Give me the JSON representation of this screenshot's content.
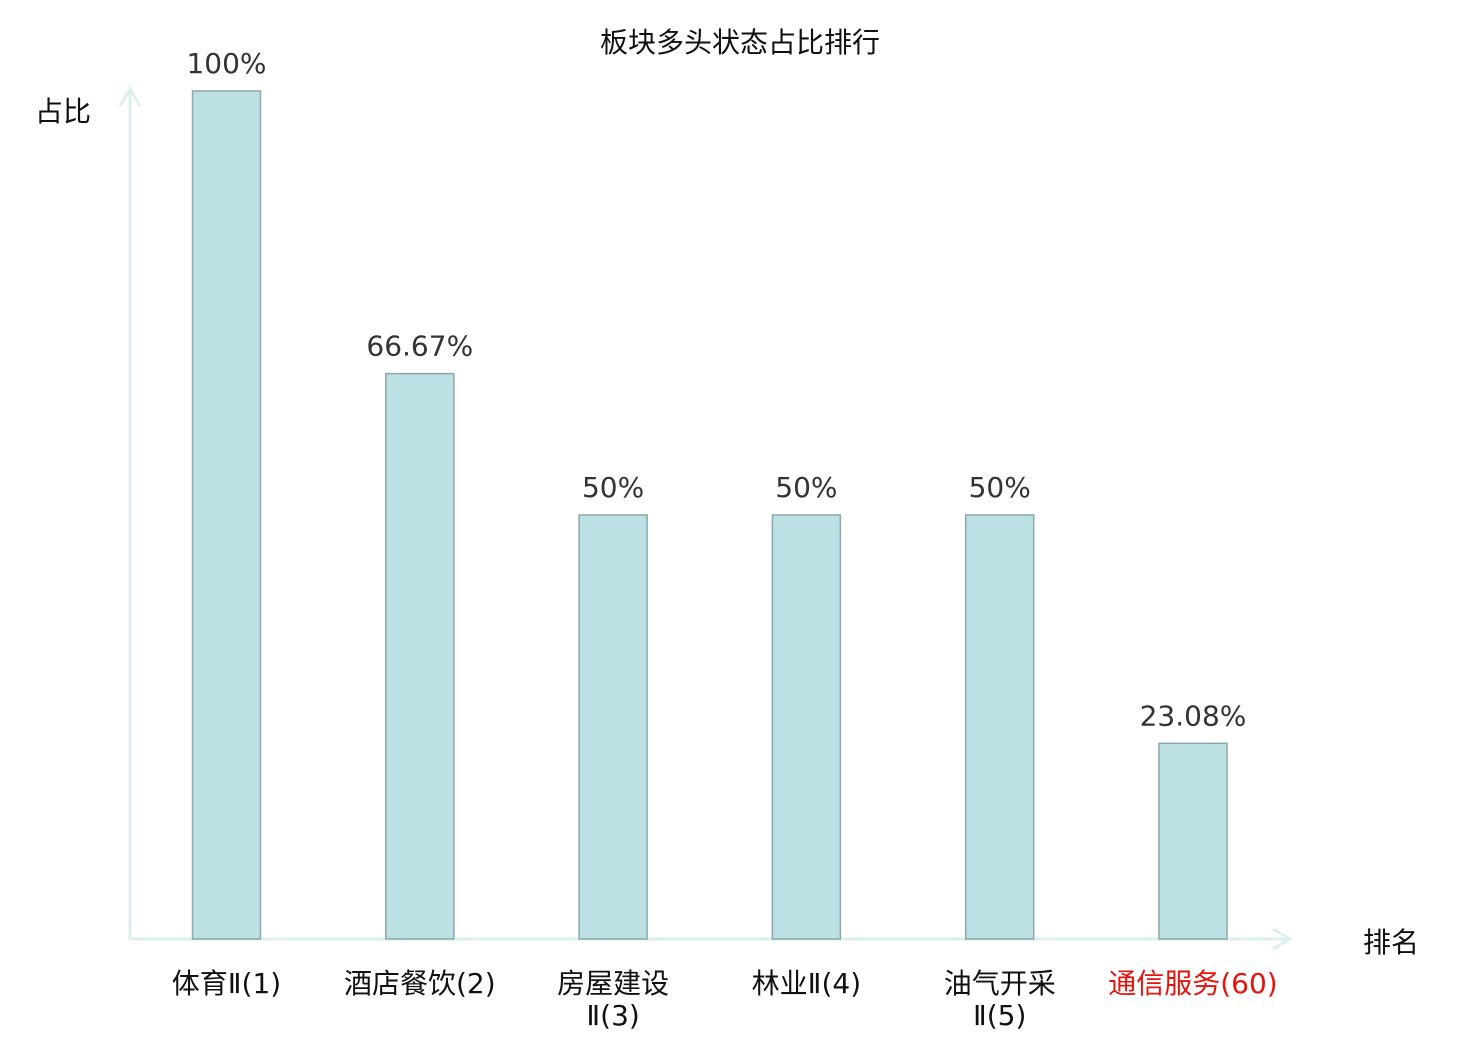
{
  "chart_data": {
    "type": "bar",
    "title": "板块多头状态占比排行",
    "xlabel": "排名",
    "ylabel": "占比",
    "ylim": [
      0,
      100
    ],
    "categories": [
      "体育Ⅱ(1)",
      "酒店餐饮(2)",
      "房屋建设Ⅱ(3)",
      "林业Ⅱ(4)",
      "油气开采Ⅱ(5)",
      "通信服务(60)"
    ],
    "category_lines": [
      [
        "体育Ⅱ(1)"
      ],
      [
        "酒店餐饮(2)"
      ],
      [
        "房屋建设",
        "Ⅱ(3)"
      ],
      [
        "林业Ⅱ(4)"
      ],
      [
        "油气开采",
        "Ⅱ(5)"
      ],
      [
        "通信服务(60)"
      ]
    ],
    "values": [
      100,
      66.67,
      50,
      50,
      50,
      23.08
    ],
    "value_labels": [
      "100%",
      "66.67%",
      "50%",
      "50%",
      "50%",
      "23.08%"
    ],
    "highlight_index": 5,
    "colors": {
      "bar_fill": "#bce0e3",
      "bar_stroke": "#8aa9ac",
      "axis": "#dcf1ef",
      "highlight": "#e8120c",
      "text": "#222222"
    },
    "grid": false
  }
}
